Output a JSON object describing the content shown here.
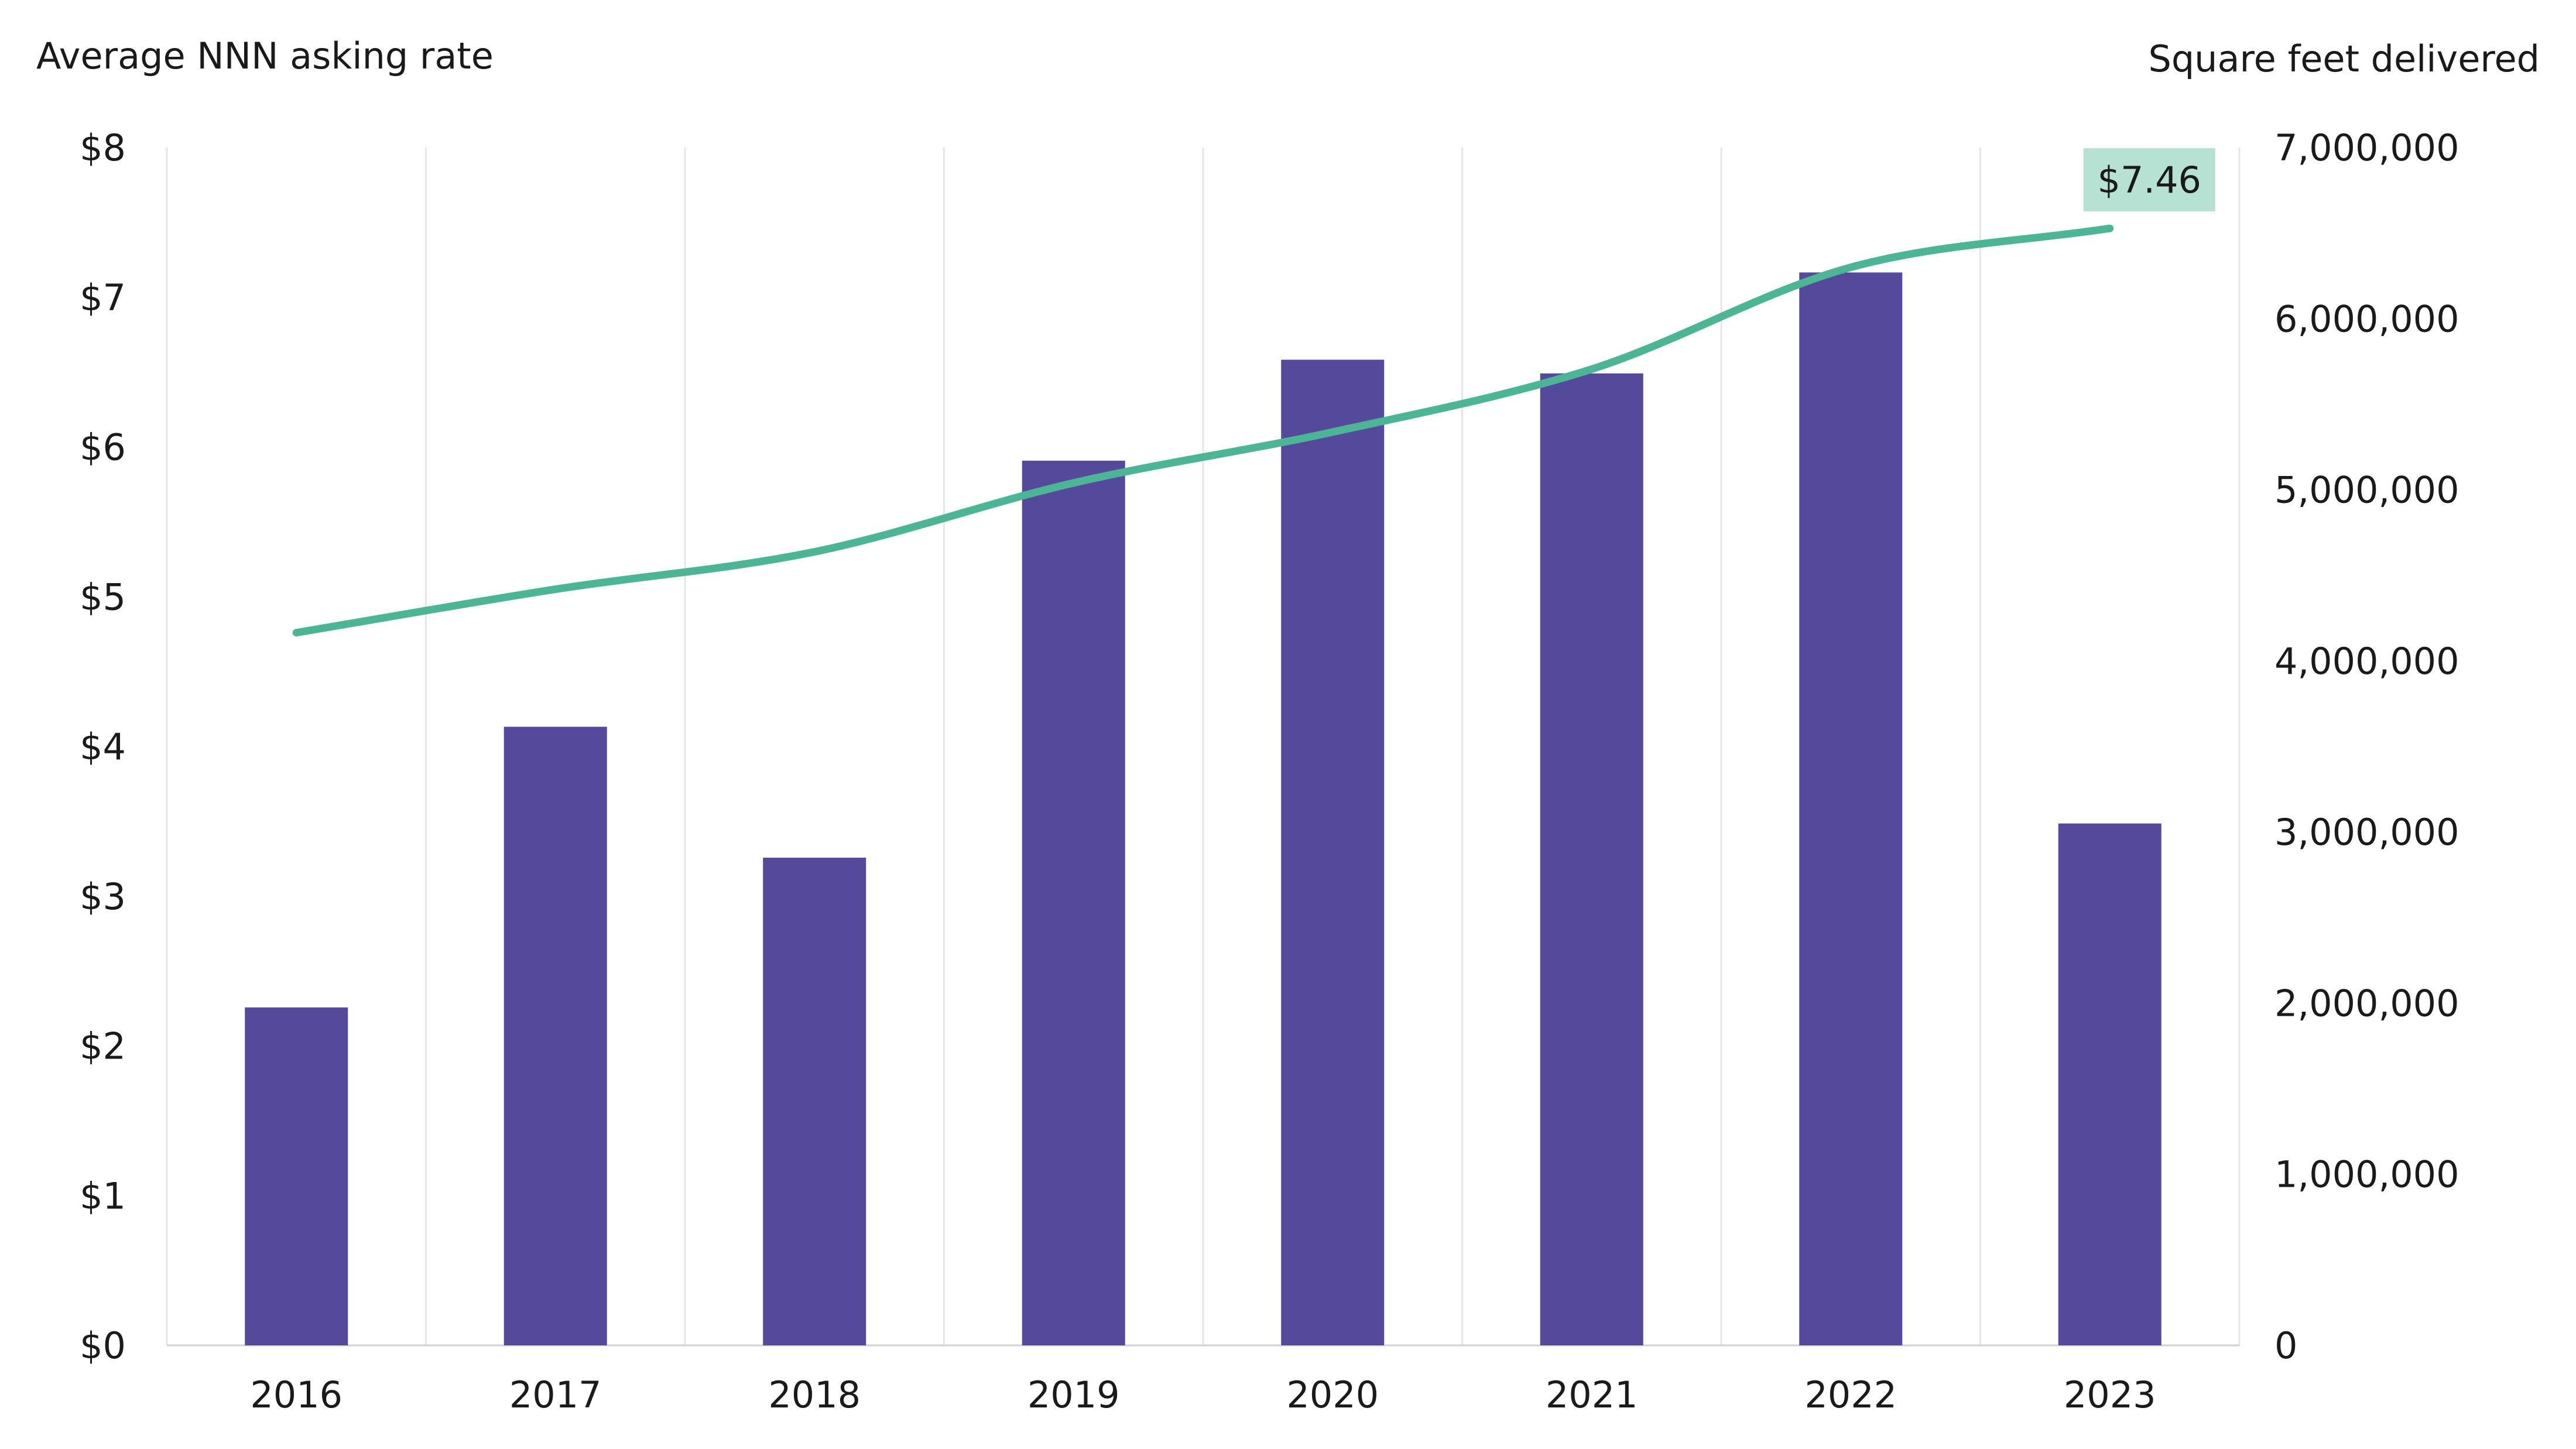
{
  "chart_data": {
    "type": "bar",
    "categories": [
      "2016",
      "2017",
      "2018",
      "2019",
      "2020",
      "2021",
      "2022",
      "2023"
    ],
    "series": [
      {
        "type": "bar",
        "axis": "right",
        "values": [
          1975000,
          3615000,
          2850000,
          5170000,
          5760000,
          5680000,
          6270000,
          3050000
        ]
      },
      {
        "type": "line",
        "axis": "left",
        "values": [
          4.76,
          5.05,
          5.3,
          5.76,
          6.1,
          6.52,
          7.2,
          7.46
        ]
      }
    ],
    "ylabel_left": "Average NNN asking rate",
    "ylabel_right": "Square feet delivered",
    "ylim_left": [
      0,
      8
    ],
    "ylim_right": [
      0,
      7000000
    ],
    "yticks_left": [
      "$0",
      "$1",
      "$2",
      "$3",
      "$4",
      "$5",
      "$6",
      "$7",
      "$8"
    ],
    "yticks_right": [
      "0",
      "1,000,000",
      "2,000,000",
      "3,000,000",
      "4,000,000",
      "5,000,000",
      "6,000,000",
      "7,000,000"
    ],
    "callout": "$7.46",
    "grid": "vertical",
    "colors": {
      "bar": "#54499b",
      "line": "#4cb596",
      "callout_bg": "#b7e2d3",
      "grid": "#e6e6e6",
      "axis": "#d0d0d0"
    }
  }
}
